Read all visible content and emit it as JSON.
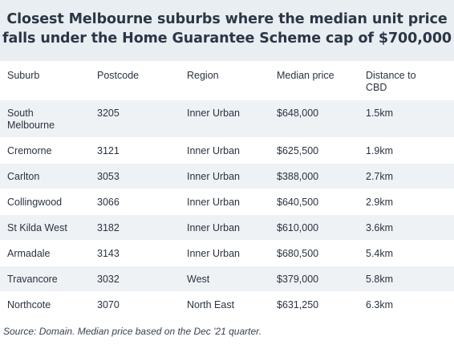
{
  "title": {
    "line1": "Closest Melbourne suburbs where the median unit price",
    "line2": "falls under the Home Guarantee Scheme cap of $700,000"
  },
  "table": {
    "headers": {
      "suburb": "Suburb",
      "postcode": "Postcode",
      "region": "Region",
      "median_price": "Median price",
      "distance_line1": "Distance to",
      "distance_line2": "CBD"
    },
    "rows": [
      {
        "suburb_line1": "South",
        "suburb_line2": "Melbourne",
        "postcode": "3205",
        "region": "Inner Urban",
        "median_price": "$648,000",
        "distance": "1.5km"
      },
      {
        "suburb_line1": "Cremorne",
        "suburb_line2": "",
        "postcode": "3121",
        "region": "Inner Urban",
        "median_price": "$625,500",
        "distance": "1.9km"
      },
      {
        "suburb_line1": "Carlton",
        "suburb_line2": "",
        "postcode": "3053",
        "region": "Inner Urban",
        "median_price": "$388,000",
        "distance": "2.7km"
      },
      {
        "suburb_line1": "Collingwood",
        "suburb_line2": "",
        "postcode": "3066",
        "region": "Inner Urban",
        "median_price": "$640,500",
        "distance": "2.9km"
      },
      {
        "suburb_line1": "St Kilda West",
        "suburb_line2": "",
        "postcode": "3182",
        "region": "Inner Urban",
        "median_price": "$610,000",
        "distance": "3.6km"
      },
      {
        "suburb_line1": "Armadale",
        "suburb_line2": "",
        "postcode": "3143",
        "region": "Inner Urban",
        "median_price": "$680,500",
        "distance": "5.4km"
      },
      {
        "suburb_line1": "Travancore",
        "suburb_line2": "",
        "postcode": "3032",
        "region": "West",
        "median_price": "$379,000",
        "distance": "5.8km"
      },
      {
        "suburb_line1": "Northcote",
        "suburb_line2": "",
        "postcode": "3070",
        "region": "North East",
        "median_price": "$631,250",
        "distance": "6.3km"
      }
    ]
  },
  "source": "Source: Domain. Median price based on the Dec '21 quarter.",
  "colors": {
    "title_band": "#e9eef2",
    "row_stripe": "#eef2f5",
    "text": "#2b3340"
  }
}
